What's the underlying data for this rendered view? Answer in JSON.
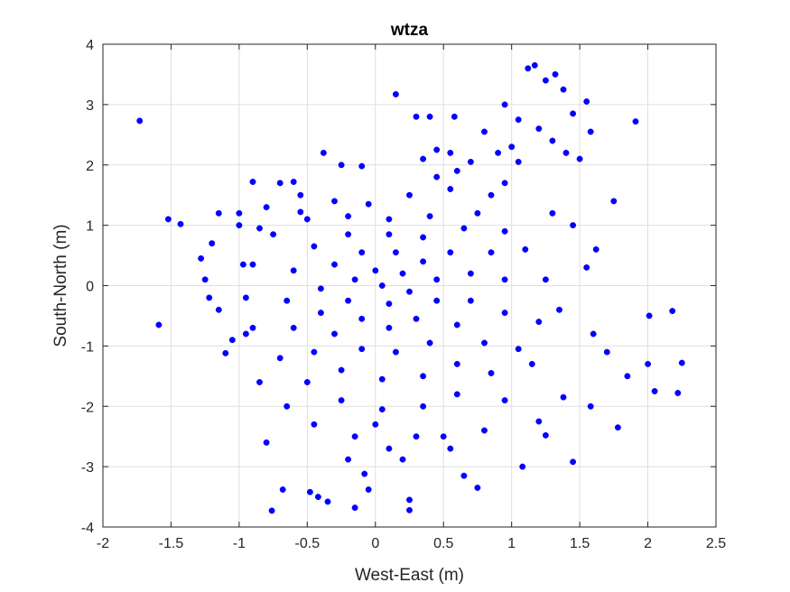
{
  "colors": {
    "background": "#ffffff",
    "axes_background": "#ffffff",
    "grid": "#dfdfdf",
    "axis_line": "#262626",
    "marker": "#0000ff"
  },
  "chart_data": {
    "type": "scatter",
    "title": "wtza",
    "xlabel": "West-East (m)",
    "ylabel": "South-North (m)",
    "xlim": [
      -2,
      2.5
    ],
    "ylim": [
      -4,
      4
    ],
    "xticks": [
      -2,
      -1.5,
      -1,
      -0.5,
      0,
      0.5,
      1,
      1.5,
      2,
      2.5
    ],
    "xtick_labels": [
      "-2",
      "-1.5",
      "-1",
      "-0.5",
      "0",
      "0.5",
      "1",
      "1.5",
      "2",
      "2.5"
    ],
    "yticks": [
      -4,
      -3,
      -2,
      -1,
      0,
      1,
      2,
      3,
      4
    ],
    "ytick_labels": [
      "-4",
      "-3",
      "-2",
      "-1",
      "0",
      "1",
      "2",
      "3",
      "4"
    ],
    "grid": true,
    "box": true,
    "marker": "filled-circle",
    "series": [
      {
        "color": "#0000ff",
        "points": [
          [
            -1.73,
            2.73
          ],
          [
            -1.59,
            -0.65
          ],
          [
            -1.52,
            1.1
          ],
          [
            -1.43,
            1.02
          ],
          [
            -1.28,
            0.45
          ],
          [
            -1.22,
            -0.2
          ],
          [
            -1.15,
            1.2
          ],
          [
            -1.1,
            -1.12
          ],
          [
            -1.0,
            1.2
          ],
          [
            -0.97,
            0.35
          ],
          [
            -0.95,
            -0.8
          ],
          [
            -0.9,
            1.72
          ],
          [
            -0.85,
            0.95
          ],
          [
            -0.8,
            -2.6
          ],
          [
            -0.76,
            -3.73
          ],
          [
            -0.7,
            1.7
          ],
          [
            -0.68,
            -3.38
          ],
          [
            -0.6,
            1.72
          ],
          [
            -0.55,
            1.22
          ],
          [
            -0.48,
            -3.42
          ],
          [
            -0.42,
            -3.5
          ],
          [
            -0.38,
            2.2
          ],
          [
            -0.35,
            -3.58
          ],
          [
            -0.25,
            2.0
          ],
          [
            -0.2,
            -2.88
          ],
          [
            -0.15,
            -3.68
          ],
          [
            -0.1,
            1.98
          ],
          [
            -0.08,
            -3.12
          ],
          [
            -0.05,
            -3.38
          ],
          [
            0.0,
            -2.3
          ],
          [
            0.15,
            3.17
          ],
          [
            0.2,
            -2.88
          ],
          [
            0.25,
            -3.72
          ],
          [
            0.25,
            -3.55
          ],
          [
            0.3,
            2.8
          ],
          [
            0.4,
            2.8
          ],
          [
            0.45,
            2.25
          ],
          [
            0.5,
            -2.5
          ],
          [
            0.58,
            2.8
          ],
          [
            0.65,
            -3.15
          ],
          [
            0.75,
            -3.35
          ],
          [
            0.8,
            2.55
          ],
          [
            0.95,
            3.0
          ],
          [
            1.05,
            2.05
          ],
          [
            1.08,
            -3.0
          ],
          [
            1.12,
            3.6
          ],
          [
            1.17,
            3.65
          ],
          [
            1.25,
            3.4
          ],
          [
            1.32,
            3.5
          ],
          [
            1.38,
            3.25
          ],
          [
            1.45,
            2.85
          ],
          [
            1.45,
            -2.92
          ],
          [
            1.5,
            2.1
          ],
          [
            1.55,
            3.05
          ],
          [
            1.58,
            2.55
          ],
          [
            1.62,
            0.6
          ],
          [
            1.7,
            -1.1
          ],
          [
            1.75,
            1.4
          ],
          [
            1.78,
            -2.35
          ],
          [
            1.85,
            -1.5
          ],
          [
            1.91,
            2.72
          ],
          [
            2.0,
            -1.3
          ],
          [
            2.01,
            -0.5
          ],
          [
            2.05,
            -1.75
          ],
          [
            2.18,
            -0.42
          ],
          [
            2.22,
            -1.78
          ],
          [
            2.25,
            -1.28
          ],
          [
            1.6,
            -0.8
          ],
          [
            1.58,
            -2.0
          ],
          [
            1.38,
            -1.85
          ],
          [
            1.2,
            -2.25
          ],
          [
            1.25,
            -2.48
          ],
          [
            0.95,
            1.7
          ],
          [
            1.05,
            2.75
          ],
          [
            1.2,
            2.6
          ],
          [
            1.3,
            2.4
          ],
          [
            1.4,
            2.2
          ],
          [
            1.0,
            2.3
          ],
          [
            0.9,
            2.2
          ],
          [
            0.7,
            2.05
          ],
          [
            0.6,
            1.9
          ],
          [
            0.55,
            2.2
          ],
          [
            0.35,
            2.1
          ],
          [
            0.45,
            1.8
          ],
          [
            0.85,
            1.5
          ],
          [
            1.3,
            1.2
          ],
          [
            1.45,
            1.0
          ],
          [
            1.55,
            0.3
          ],
          [
            1.35,
            -0.4
          ],
          [
            1.15,
            -1.3
          ],
          [
            0.95,
            -1.9
          ],
          [
            0.8,
            -2.4
          ],
          [
            0.55,
            -2.7
          ],
          [
            0.3,
            -2.5
          ],
          [
            0.1,
            -2.7
          ],
          [
            -0.15,
            -2.5
          ],
          [
            -0.45,
            -2.3
          ],
          [
            -0.65,
            -2.0
          ],
          [
            -0.85,
            -1.6
          ],
          [
            -1.05,
            -0.9
          ],
          [
            -1.15,
            -0.4
          ],
          [
            -1.25,
            0.1
          ],
          [
            -1.2,
            0.7
          ],
          [
            -1.0,
            1.0
          ],
          [
            -0.8,
            1.3
          ],
          [
            -0.55,
            1.5
          ],
          [
            -0.3,
            1.4
          ],
          [
            -0.05,
            1.35
          ],
          [
            0.25,
            1.5
          ],
          [
            0.55,
            1.6
          ],
          [
            0.75,
            1.2
          ],
          [
            0.95,
            0.9
          ],
          [
            1.1,
            0.6
          ],
          [
            1.25,
            0.1
          ],
          [
            1.2,
            -0.6
          ],
          [
            1.05,
            -1.05
          ],
          [
            0.85,
            -1.45
          ],
          [
            0.6,
            -1.8
          ],
          [
            0.35,
            -2.0
          ],
          [
            0.05,
            -2.05
          ],
          [
            -0.25,
            -1.9
          ],
          [
            -0.5,
            -1.6
          ],
          [
            -0.7,
            -1.2
          ],
          [
            -0.9,
            -0.7
          ],
          [
            -0.95,
            -0.2
          ],
          [
            -0.9,
            0.35
          ],
          [
            -0.75,
            0.85
          ],
          [
            -0.5,
            1.1
          ],
          [
            -0.2,
            1.15
          ],
          [
            0.1,
            1.1
          ],
          [
            0.4,
            1.15
          ],
          [
            0.65,
            0.95
          ],
          [
            0.85,
            0.55
          ],
          [
            0.95,
            0.1
          ],
          [
            0.95,
            -0.45
          ],
          [
            0.8,
            -0.95
          ],
          [
            0.6,
            -1.3
          ],
          [
            0.35,
            -1.5
          ],
          [
            0.05,
            -1.55
          ],
          [
            -0.25,
            -1.4
          ],
          [
            -0.45,
            -1.1
          ],
          [
            -0.6,
            -0.7
          ],
          [
            -0.65,
            -0.25
          ],
          [
            -0.6,
            0.25
          ],
          [
            -0.45,
            0.65
          ],
          [
            -0.2,
            0.85
          ],
          [
            0.1,
            0.85
          ],
          [
            0.35,
            0.8
          ],
          [
            0.55,
            0.55
          ],
          [
            0.7,
            0.2
          ],
          [
            0.7,
            -0.25
          ],
          [
            0.6,
            -0.65
          ],
          [
            0.4,
            -0.95
          ],
          [
            0.15,
            -1.1
          ],
          [
            -0.1,
            -1.05
          ],
          [
            -0.3,
            -0.8
          ],
          [
            -0.4,
            -0.45
          ],
          [
            -0.4,
            -0.05
          ],
          [
            -0.3,
            0.35
          ],
          [
            -0.1,
            0.55
          ],
          [
            0.15,
            0.55
          ],
          [
            0.35,
            0.4
          ],
          [
            0.45,
            0.1
          ],
          [
            0.45,
            -0.25
          ],
          [
            0.3,
            -0.55
          ],
          [
            0.1,
            -0.7
          ],
          [
            -0.1,
            -0.55
          ],
          [
            -0.2,
            -0.25
          ],
          [
            -0.15,
            0.1
          ],
          [
            0.0,
            0.25
          ],
          [
            0.2,
            0.2
          ],
          [
            0.25,
            -0.1
          ],
          [
            0.1,
            -0.3
          ],
          [
            0.05,
            0.0
          ]
        ]
      }
    ]
  }
}
